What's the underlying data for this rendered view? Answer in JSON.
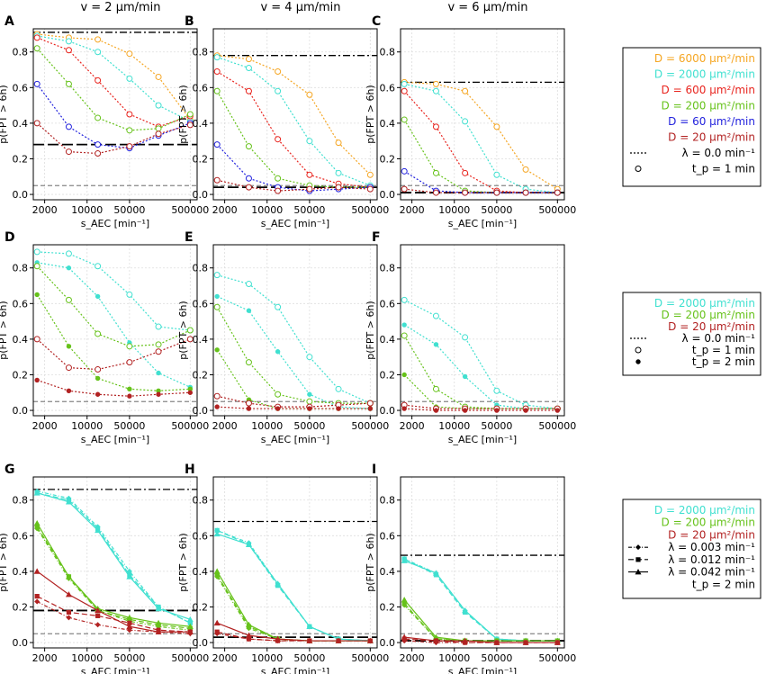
{
  "column_titles": [
    "v = 2 μm/min",
    "v = 4 μm/min",
    "v = 6 μm/min"
  ],
  "chart_data": {
    "type": "line",
    "x_scale": "log",
    "xlim": [
      1300,
      650000
    ],
    "ylim": [
      -0.03,
      0.93
    ],
    "xlabel": "s_AEC [min⁻¹]",
    "ylabel": "p(FPT > 6h)",
    "x_ticks": [
      2000,
      10000,
      50000,
      500000
    ],
    "x_tick_labels": [
      "2000",
      "10000",
      "50000",
      "500000"
    ],
    "y_ticks": [
      0.0,
      0.2,
      0.4,
      0.6,
      0.8
    ],
    "y_tick_labels": [
      "0.0",
      "0.2",
      "0.4",
      "0.6",
      "0.8"
    ],
    "x": [
      1500,
      5000,
      15000,
      50000,
      150000,
      500000
    ],
    "reference_line": 0.05,
    "series_colors": {
      "D6000": "#f5a623",
      "D2000": "#40e0d0",
      "D600": "#e8241e",
      "D200": "#66c21a",
      "D60": "#2222dd",
      "D20": "#b22222"
    },
    "panels": [
      {
        "label": "A",
        "hline": 0.91,
        "hline2": 0.28,
        "series": [
          {
            "name": "D6000",
            "marker": "open",
            "values": [
              0.9,
              0.88,
              0.87,
              0.79,
              0.66,
              0.42
            ]
          },
          {
            "name": "D2000",
            "marker": "open",
            "values": [
              0.89,
              0.86,
              0.8,
              0.65,
              0.5,
              0.41
            ]
          },
          {
            "name": "D600",
            "marker": "open",
            "values": [
              0.88,
              0.81,
              0.64,
              0.45,
              0.38,
              0.44
            ]
          },
          {
            "name": "D200",
            "marker": "open",
            "values": [
              0.82,
              0.62,
              0.43,
              0.36,
              0.37,
              0.45
            ]
          },
          {
            "name": "D60",
            "marker": "open",
            "values": [
              0.62,
              0.38,
              0.28,
              0.26,
              0.33,
              0.4
            ]
          },
          {
            "name": "D20",
            "marker": "open",
            "values": [
              0.4,
              0.24,
              0.23,
              0.27,
              0.34,
              0.39
            ]
          }
        ]
      },
      {
        "label": "B",
        "hline": 0.78,
        "hline2": 0.04,
        "series": [
          {
            "name": "D6000",
            "marker": "open",
            "values": [
              0.78,
              0.76,
              0.69,
              0.56,
              0.29,
              0.11
            ]
          },
          {
            "name": "D2000",
            "marker": "open",
            "values": [
              0.77,
              0.71,
              0.58,
              0.3,
              0.12,
              0.05
            ]
          },
          {
            "name": "D600",
            "marker": "open",
            "values": [
              0.69,
              0.58,
              0.31,
              0.11,
              0.06,
              0.04
            ]
          },
          {
            "name": "D200",
            "marker": "open",
            "values": [
              0.58,
              0.27,
              0.09,
              0.05,
              0.04,
              0.04
            ]
          },
          {
            "name": "D60",
            "marker": "open",
            "values": [
              0.28,
              0.09,
              0.04,
              0.02,
              0.03,
              0.04
            ]
          },
          {
            "name": "D20",
            "marker": "open",
            "values": [
              0.08,
              0.04,
              0.02,
              0.03,
              0.04,
              0.03
            ]
          }
        ]
      },
      {
        "label": "C",
        "hline": 0.63,
        "hline2": 0.01,
        "series": [
          {
            "name": "D6000",
            "marker": "open",
            "values": [
              0.63,
              0.62,
              0.58,
              0.38,
              0.14,
              0.03
            ]
          },
          {
            "name": "D2000",
            "marker": "open",
            "values": [
              0.62,
              0.58,
              0.41,
              0.11,
              0.03,
              0.01
            ]
          },
          {
            "name": "D600",
            "marker": "open",
            "values": [
              0.58,
              0.38,
              0.12,
              0.02,
              0.01,
              0.01
            ]
          },
          {
            "name": "D200",
            "marker": "open",
            "values": [
              0.42,
              0.12,
              0.02,
              0.01,
              0.01,
              0.01
            ]
          },
          {
            "name": "D60",
            "marker": "open",
            "values": [
              0.13,
              0.02,
              0.01,
              0.01,
              0.01,
              0.01
            ]
          },
          {
            "name": "D20",
            "marker": "open",
            "values": [
              0.03,
              0.01,
              0.01,
              0.01,
              0.01,
              0.01
            ]
          }
        ]
      },
      {
        "label": "D",
        "series": [
          {
            "name": "D2000",
            "marker": "open",
            "values": [
              0.89,
              0.88,
              0.81,
              0.65,
              0.47,
              0.45
            ]
          },
          {
            "name": "D2000",
            "marker": "filled",
            "values": [
              0.83,
              0.8,
              0.64,
              0.38,
              0.21,
              0.13
            ]
          },
          {
            "name": "D200",
            "marker": "open",
            "values": [
              0.81,
              0.62,
              0.43,
              0.36,
              0.37,
              0.45
            ]
          },
          {
            "name": "D200",
            "marker": "filled",
            "values": [
              0.65,
              0.36,
              0.18,
              0.12,
              0.11,
              0.12
            ]
          },
          {
            "name": "D20",
            "marker": "open",
            "values": [
              0.4,
              0.24,
              0.23,
              0.27,
              0.33,
              0.4
            ]
          },
          {
            "name": "D20",
            "marker": "filled",
            "values": [
              0.17,
              0.11,
              0.09,
              0.08,
              0.09,
              0.1
            ]
          }
        ]
      },
      {
        "label": "E",
        "series": [
          {
            "name": "D2000",
            "marker": "open",
            "values": [
              0.76,
              0.71,
              0.58,
              0.3,
              0.12,
              0.04
            ]
          },
          {
            "name": "D2000",
            "marker": "filled",
            "values": [
              0.64,
              0.56,
              0.33,
              0.09,
              0.02,
              0.01
            ]
          },
          {
            "name": "D200",
            "marker": "open",
            "values": [
              0.58,
              0.27,
              0.09,
              0.05,
              0.04,
              0.04
            ]
          },
          {
            "name": "D200",
            "marker": "filled",
            "values": [
              0.34,
              0.06,
              0.01,
              0.01,
              0.01,
              0.01
            ]
          },
          {
            "name": "D20",
            "marker": "open",
            "values": [
              0.08,
              0.04,
              0.02,
              0.02,
              0.03,
              0.04
            ]
          },
          {
            "name": "D20",
            "marker": "filled",
            "values": [
              0.02,
              0.01,
              0.01,
              0.01,
              0.01,
              0.01
            ]
          }
        ]
      },
      {
        "label": "F",
        "series": [
          {
            "name": "D2000",
            "marker": "open",
            "values": [
              0.62,
              0.53,
              0.41,
              0.11,
              0.03,
              0.01
            ]
          },
          {
            "name": "D2000",
            "marker": "filled",
            "values": [
              0.48,
              0.37,
              0.19,
              0.03,
              0.01,
              0.01
            ]
          },
          {
            "name": "D200",
            "marker": "open",
            "values": [
              0.42,
              0.12,
              0.02,
              0.01,
              0.01,
              0.01
            ]
          },
          {
            "name": "D200",
            "marker": "filled",
            "values": [
              0.2,
              0.02,
              0.01,
              0.01,
              0.01,
              0.01
            ]
          },
          {
            "name": "D20",
            "marker": "open",
            "values": [
              0.03,
              0.01,
              0.01,
              0.01,
              0.01,
              0.01
            ]
          },
          {
            "name": "D20",
            "marker": "filled",
            "values": [
              0.01,
              0.0,
              0.0,
              0.0,
              0.0,
              0.0
            ]
          }
        ]
      },
      {
        "label": "G",
        "hline": 0.86,
        "hline2": 0.18,
        "series": [
          {
            "name": "D2000",
            "marker": "diamond",
            "values": [
              0.85,
              0.81,
              0.65,
              0.4,
              0.2,
              0.11
            ]
          },
          {
            "name": "D2000",
            "marker": "square",
            "values": [
              0.84,
              0.8,
              0.64,
              0.38,
              0.2,
              0.11
            ]
          },
          {
            "name": "D2000",
            "marker": "triangle",
            "values": [
              0.84,
              0.79,
              0.63,
              0.37,
              0.19,
              0.13
            ]
          },
          {
            "name": "D200",
            "marker": "diamond",
            "values": [
              0.64,
              0.36,
              0.18,
              0.12,
              0.09,
              0.07
            ]
          },
          {
            "name": "D200",
            "marker": "square",
            "values": [
              0.65,
              0.37,
              0.18,
              0.13,
              0.1,
              0.08
            ]
          },
          {
            "name": "D200",
            "marker": "triangle",
            "values": [
              0.67,
              0.37,
              0.19,
              0.14,
              0.11,
              0.09
            ]
          },
          {
            "name": "D20",
            "marker": "diamond",
            "values": [
              0.23,
              0.14,
              0.1,
              0.07,
              0.06,
              0.05
            ]
          },
          {
            "name": "D20",
            "marker": "square",
            "values": [
              0.26,
              0.17,
              0.15,
              0.11,
              0.07,
              0.06
            ]
          },
          {
            "name": "D20",
            "marker": "triangle",
            "values": [
              0.4,
              0.27,
              0.18,
              0.09,
              0.06,
              0.06
            ]
          }
        ]
      },
      {
        "label": "H",
        "hline": 0.68,
        "hline2": 0.03,
        "series": [
          {
            "name": "D2000",
            "marker": "diamond",
            "values": [
              0.63,
              0.56,
              0.33,
              0.09,
              0.02,
              0.01
            ]
          },
          {
            "name": "D2000",
            "marker": "square",
            "values": [
              0.63,
              0.55,
              0.32,
              0.09,
              0.02,
              0.01
            ]
          },
          {
            "name": "D2000",
            "marker": "triangle",
            "values": [
              0.61,
              0.55,
              0.33,
              0.09,
              0.02,
              0.01
            ]
          },
          {
            "name": "D200",
            "marker": "diamond",
            "values": [
              0.37,
              0.08,
              0.02,
              0.01,
              0.01,
              0.01
            ]
          },
          {
            "name": "D200",
            "marker": "square",
            "values": [
              0.38,
              0.09,
              0.02,
              0.01,
              0.01,
              0.01
            ]
          },
          {
            "name": "D200",
            "marker": "triangle",
            "values": [
              0.4,
              0.1,
              0.02,
              0.01,
              0.01,
              0.01
            ]
          },
          {
            "name": "D20",
            "marker": "diamond",
            "values": [
              0.05,
              0.02,
              0.01,
              0.01,
              0.01,
              0.01
            ]
          },
          {
            "name": "D20",
            "marker": "square",
            "values": [
              0.06,
              0.02,
              0.01,
              0.01,
              0.01,
              0.01
            ]
          },
          {
            "name": "D20",
            "marker": "triangle",
            "values": [
              0.11,
              0.04,
              0.02,
              0.01,
              0.01,
              0.01
            ]
          }
        ]
      },
      {
        "label": "I",
        "hline": 0.49,
        "hline2": 0.01,
        "series": [
          {
            "name": "D2000",
            "marker": "diamond",
            "values": [
              0.47,
              0.39,
              0.18,
              0.02,
              0.01,
              0.01
            ]
          },
          {
            "name": "D2000",
            "marker": "square",
            "values": [
              0.47,
              0.38,
              0.17,
              0.02,
              0.01,
              0.01
            ]
          },
          {
            "name": "D2000",
            "marker": "triangle",
            "values": [
              0.46,
              0.39,
              0.18,
              0.02,
              0.01,
              0.01
            ]
          },
          {
            "name": "D200",
            "marker": "diamond",
            "values": [
              0.21,
              0.02,
              0.01,
              0.01,
              0.01,
              0.01
            ]
          },
          {
            "name": "D200",
            "marker": "square",
            "values": [
              0.22,
              0.02,
              0.01,
              0.01,
              0.01,
              0.01
            ]
          },
          {
            "name": "D200",
            "marker": "triangle",
            "values": [
              0.24,
              0.03,
              0.01,
              0.01,
              0.01,
              0.01
            ]
          },
          {
            "name": "D20",
            "marker": "diamond",
            "values": [
              0.01,
              0.0,
              0.0,
              0.0,
              0.0,
              0.0
            ]
          },
          {
            "name": "D20",
            "marker": "square",
            "values": [
              0.02,
              0.01,
              0.0,
              0.0,
              0.0,
              0.0
            ]
          },
          {
            "name": "D20",
            "marker": "triangle",
            "values": [
              0.03,
              0.01,
              0.01,
              0.0,
              0.0,
              0.0
            ]
          }
        ]
      }
    ],
    "legends": [
      {
        "entries": [
          {
            "text": "D = 6000 μm²/min",
            "color": "#f5a623"
          },
          {
            "text": "D = 2000 μm²/min",
            "color": "#40e0d0"
          },
          {
            "text": "D = 600 μm²/min",
            "color": "#e8241e"
          },
          {
            "text": "D = 200 μm²/min",
            "color": "#66c21a"
          },
          {
            "text": "D = 60 μm²/min",
            "color": "#2222dd"
          },
          {
            "text": "D = 20 μm²/min",
            "color": "#b22222"
          },
          {
            "text": "λ = 0.0 min⁻¹",
            "color": "#000000",
            "symbol": "dotted"
          },
          {
            "text": "t_p = 1 min",
            "color": "#000000",
            "symbol": "open"
          }
        ]
      },
      {
        "entries": [
          {
            "text": "D = 2000 μm²/min",
            "color": "#40e0d0"
          },
          {
            "text": "D = 200 μm²/min",
            "color": "#66c21a"
          },
          {
            "text": "D = 20 μm²/min",
            "color": "#b22222"
          },
          {
            "text": "λ = 0.0 min⁻¹",
            "color": "#000000",
            "symbol": "dotted"
          },
          {
            "text": "t_p = 1 min",
            "color": "#000000",
            "symbol": "open"
          },
          {
            "text": "t_p = 2 min",
            "color": "#000000",
            "symbol": "filled"
          }
        ]
      },
      {
        "entries": [
          {
            "text": "D = 2000 μm²/min",
            "color": "#40e0d0"
          },
          {
            "text": "D = 200 μm²/min",
            "color": "#66c21a"
          },
          {
            "text": "D = 20 μm²/min",
            "color": "#b22222"
          },
          {
            "text": "λ = 0.003 min⁻¹",
            "color": "#000000",
            "symbol": "diamond"
          },
          {
            "text": "λ = 0.012 min⁻¹",
            "color": "#000000",
            "symbol": "square"
          },
          {
            "text": "λ = 0.042 min⁻¹",
            "color": "#000000",
            "symbol": "triangle"
          },
          {
            "text": "t_p = 2 min",
            "color": "#000000",
            "symbol": "none"
          }
        ]
      }
    ]
  }
}
